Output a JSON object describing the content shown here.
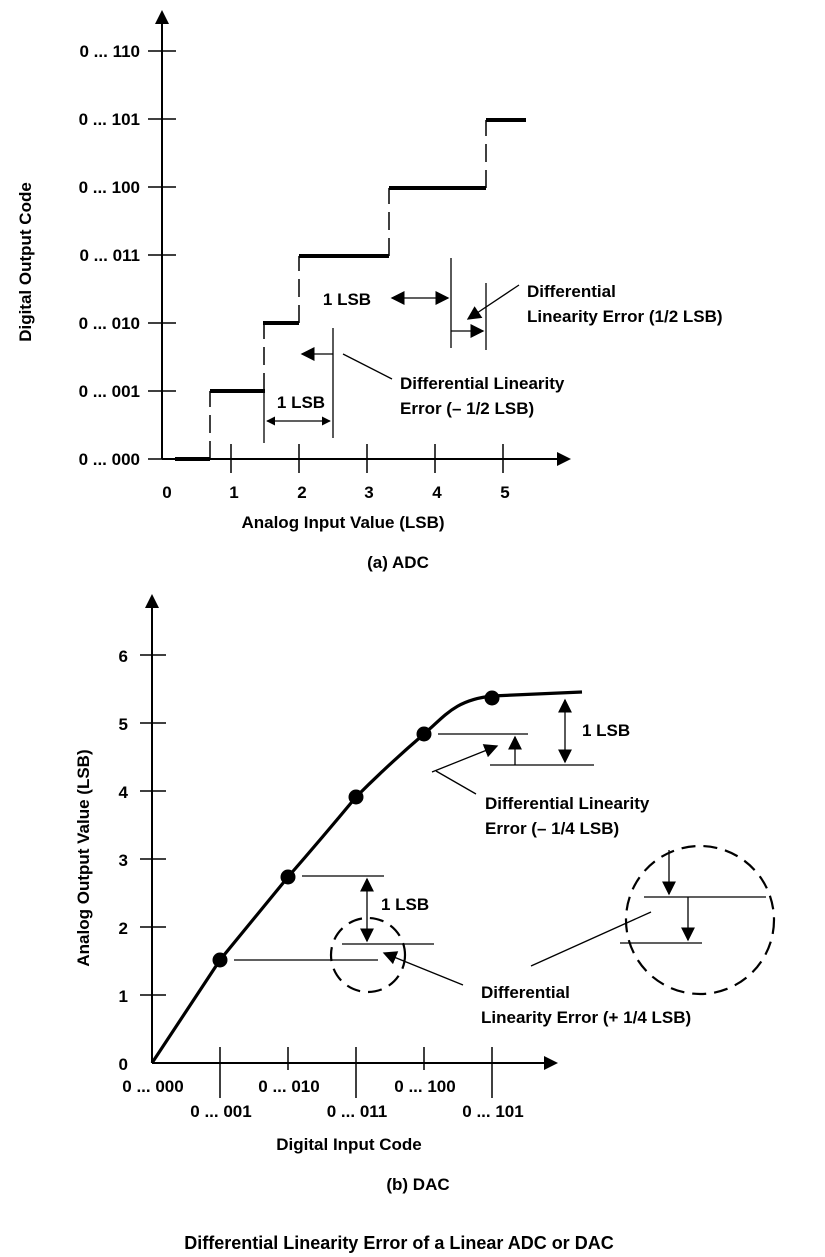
{
  "adc": {
    "y_axis_label": "Digital Output Code",
    "x_axis_label": "Analog Input Value (LSB)",
    "y_ticks": [
      "0 ... 000",
      "0 ... 001",
      "0 ... 010",
      "0 ... 011",
      "0 ... 100",
      "0 ... 101",
      "0 ... 110"
    ],
    "x_ticks": [
      "0",
      "1",
      "2",
      "3",
      "4",
      "5"
    ],
    "lsb_label_upper": "1 LSB",
    "lsb_label_lower": "1 LSB",
    "dnl_plus_line1": "Differential",
    "dnl_plus_line2": "Linearity Error (1/2 LSB)",
    "dnl_minus_line1": "Differential Linearity",
    "dnl_minus_line2": "Error (– 1/2 LSB)",
    "caption": "(a) ADC"
  },
  "dac": {
    "y_axis_label": "Analog Output Value (LSB)",
    "x_axis_label": "Digital Input Code",
    "y_ticks": [
      "0",
      "1",
      "2",
      "3",
      "4",
      "5",
      "6"
    ],
    "x_ticks_upper": [
      "0 ... 000",
      "0 ... 010",
      "0 ... 100"
    ],
    "x_ticks_lower": [
      "0 ... 001",
      "0 ... 011",
      "0 ... 101"
    ],
    "lsb_label_upper": "1 LSB",
    "lsb_label_lower": "1 LSB",
    "dnl_minus_line1": "Differential Linearity",
    "dnl_minus_line2": "Error (– 1/4 LSB)",
    "dnl_plus_line1": "Differential",
    "dnl_plus_line2": "Linearity Error (+ 1/4 LSB)",
    "caption": "(b) DAC"
  },
  "figure_title": "Differential Linearity Error of a Linear ADC or DAC"
}
